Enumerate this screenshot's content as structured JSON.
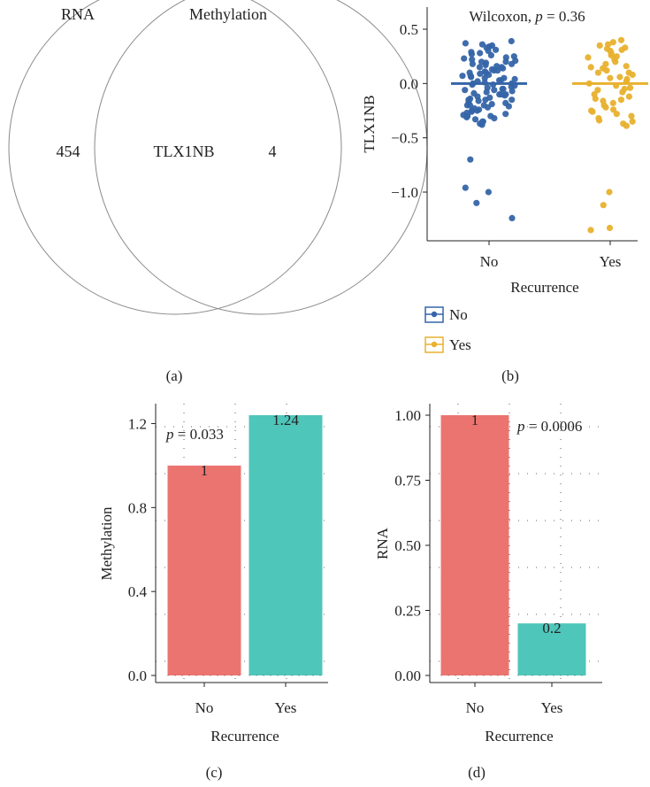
{
  "panels": {
    "a": "(a)",
    "b": "(b)",
    "c": "(c)",
    "d": "(d)"
  },
  "chart_data": [
    {
      "panel": "a",
      "type": "venn",
      "sets": [
        {
          "label": "RNA",
          "only_count": "454"
        },
        {
          "label": "Methylation",
          "only_count": "4"
        }
      ],
      "intersection": "TLX1NB"
    },
    {
      "panel": "b",
      "type": "scatter",
      "subtitle_prefix": "Wilcoxon, ",
      "p_symbol": "p",
      "p_value": " = 0.36",
      "xlabel": "Recurrence",
      "ylabel": "TLX1NB",
      "categories": [
        "No",
        "Yes"
      ],
      "ylim": [
        -1.4,
        0.5
      ],
      "yticks": [
        0.5,
        0.0,
        -0.5,
        -1.0
      ],
      "ytick_labels": [
        "0.5",
        "0.0",
        "−0.5",
        "−1.0"
      ],
      "medians": [
        0.0,
        0.0
      ],
      "legend_entries": [
        "No",
        "Yes"
      ],
      "colors": {
        "No": "#3565a8",
        "Yes": "#e8b12e"
      },
      "series": [
        {
          "name": "No",
          "x": 0,
          "values": [
            0.39,
            0.37,
            0.35,
            0.36,
            0.33,
            0.31,
            0.29,
            0.28,
            0.26,
            0.25,
            0.24,
            0.22,
            0.21,
            0.2,
            0.19,
            0.18,
            0.17,
            0.16,
            0.15,
            0.14,
            0.13,
            0.12,
            0.11,
            0.1,
            0.09,
            0.08,
            0.07,
            0.06,
            0.05,
            0.04,
            0.03,
            0.02,
            0.01,
            0.0,
            -0.01,
            -0.02,
            -0.03,
            -0.04,
            -0.05,
            -0.06,
            -0.07,
            -0.08,
            -0.09,
            -0.1,
            -0.11,
            -0.12,
            -0.13,
            -0.14,
            -0.15,
            -0.16,
            -0.17,
            -0.18,
            -0.19,
            -0.2,
            -0.21,
            -0.22,
            -0.23,
            -0.24,
            -0.25,
            -0.26,
            -0.27,
            -0.28,
            -0.29,
            -0.3,
            -0.31,
            -0.32,
            -0.33,
            -0.35,
            -0.37,
            -0.38,
            0.34,
            0.27,
            0.23,
            0.18,
            0.12,
            0.07,
            0.03,
            -0.01,
            -0.06,
            -0.1,
            -0.15,
            -0.2,
            -0.25,
            -0.3,
            -0.35,
            0.3,
            0.2,
            0.1,
            0.0,
            -0.1,
            -0.2,
            -0.3,
            0.15,
            0.05,
            -0.05,
            -0.15,
            -0.7,
            -0.96,
            -1.0,
            -1.1,
            -1.24
          ]
        },
        {
          "name": "Yes",
          "x": 1,
          "values": [
            0.4,
            0.38,
            0.36,
            0.35,
            0.33,
            0.31,
            0.3,
            0.28,
            0.26,
            0.24,
            0.22,
            0.2,
            0.18,
            0.16,
            0.14,
            0.12,
            0.1,
            0.08,
            0.06,
            0.04,
            0.02,
            0.0,
            -0.02,
            -0.04,
            -0.06,
            -0.08,
            -0.1,
            -0.12,
            -0.14,
            -0.16,
            -0.18,
            -0.2,
            -0.22,
            -0.24,
            -0.26,
            -0.28,
            -0.3,
            -0.32,
            -0.34,
            -0.37,
            -0.39,
            0.25,
            0.15,
            0.05,
            -0.05,
            -0.15,
            -0.25,
            0.32,
            -0.35,
            0.1,
            -1.0,
            -1.12,
            -1.33,
            -1.35
          ]
        }
      ]
    },
    {
      "panel": "c",
      "type": "bar",
      "categories": [
        "No",
        "Yes"
      ],
      "values": [
        1,
        1.24
      ],
      "value_labels": [
        "1",
        "1.24"
      ],
      "xlabel": "Recurrence",
      "ylabel": "Methylation",
      "p_symbol": "p",
      "p_value": " = 0.033",
      "ylim": [
        0,
        1.24
      ],
      "yticks": [
        0.0,
        0.4,
        0.8,
        1.2
      ],
      "ytick_labels": [
        "0.0",
        "0.4",
        "0.8",
        "1.2"
      ],
      "colors": [
        "#ec7470",
        "#4fc6ba"
      ]
    },
    {
      "panel": "d",
      "type": "bar",
      "categories": [
        "No",
        "Yes"
      ],
      "values": [
        1,
        0.2
      ],
      "value_labels": [
        "1",
        "0.2"
      ],
      "xlabel": "Recurrence",
      "ylabel": "RNA",
      "p_symbol": "p",
      "p_value": " = 0.0006",
      "ylim": [
        0,
        1.0
      ],
      "yticks": [
        0.0,
        0.25,
        0.5,
        0.75,
        1.0
      ],
      "ytick_labels": [
        "0.00",
        "0.25",
        "0.50",
        "0.75",
        "1.00"
      ],
      "colors": [
        "#ec7470",
        "#4fc6ba"
      ]
    }
  ]
}
